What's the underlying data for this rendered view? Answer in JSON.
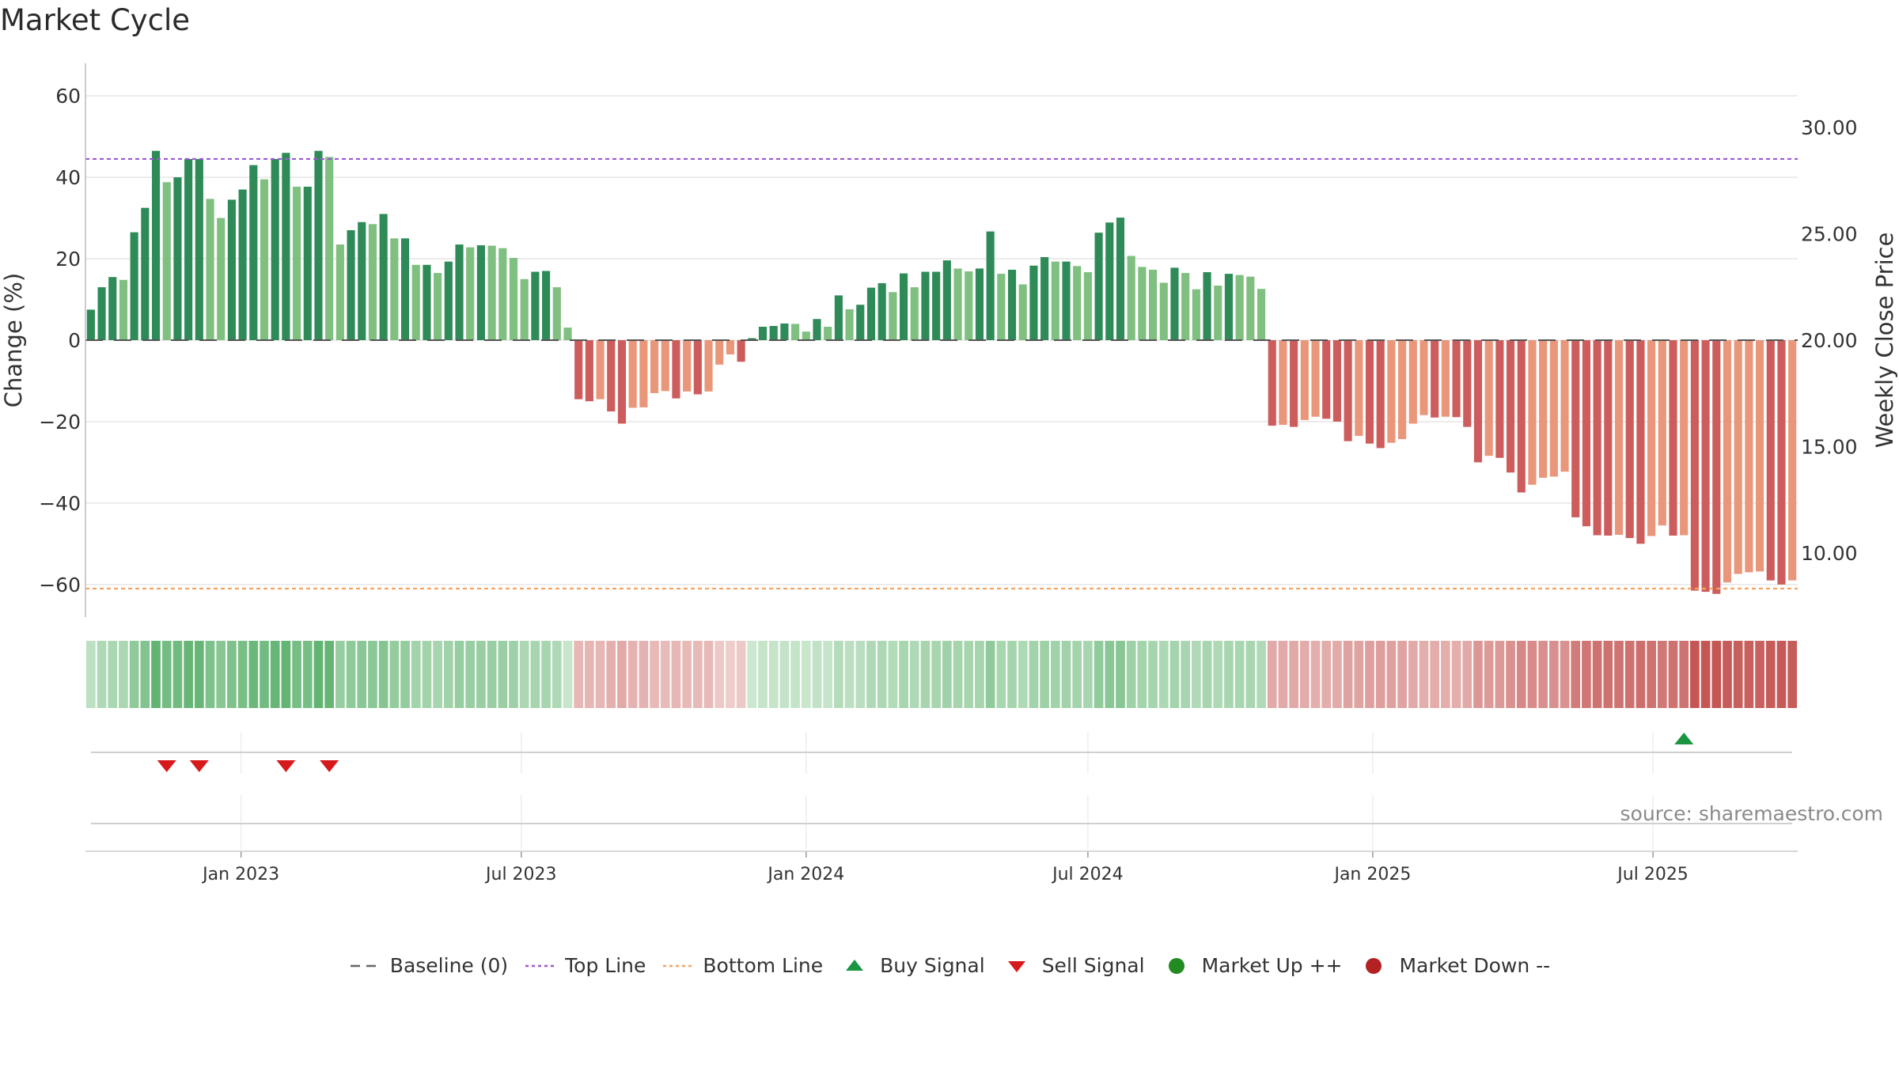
{
  "title": "Market Cycle",
  "source": "source: sharemaestro.com",
  "colors": {
    "up_strong": "#2e8b57",
    "up_weak": "#7fbf7f",
    "down_strong": "#cd5c5c",
    "down_weak": "#e9967a",
    "top_line": "#9b59d0",
    "bottom_line": "#f4a460",
    "buy": "#1a9641",
    "sell": "#d7191c",
    "market_up": "#228b22",
    "market_down": "#b22222",
    "baseline": "#555555"
  },
  "legend": {
    "items": [
      {
        "label": "Baseline (0)",
        "symbol": "dash-gray"
      },
      {
        "label": "Top Line",
        "symbol": "dot-purple"
      },
      {
        "label": "Bottom Line",
        "symbol": "dot-orange"
      },
      {
        "label": "Buy Signal",
        "symbol": "triangle-up-green"
      },
      {
        "label": "Sell Signal",
        "symbol": "triangle-down-red"
      },
      {
        "label": "Market Up ++",
        "symbol": "circle-green"
      },
      {
        "label": "Market Down --",
        "symbol": "circle-red"
      }
    ]
  },
  "chart_data": {
    "type": "bar",
    "x_start": "2022-09-26",
    "x_step_days": 7,
    "ylabel": "Change (%)",
    "ylabel_right": "Weekly Close Price",
    "ylim": [
      -68,
      68
    ],
    "yticks": [
      60,
      40,
      20,
      0,
      -20,
      -40,
      -60
    ],
    "ytick_labels": [
      "60",
      "40",
      "20",
      "0",
      "−20",
      "−40",
      "−60"
    ],
    "y2lim": [
      7,
      33
    ],
    "y2ticks": [
      30,
      25,
      20,
      15,
      10
    ],
    "y2tick_labels": [
      "30.00",
      "25.00",
      "20.00",
      "15.00",
      "10.00"
    ],
    "top_line": 44.5,
    "bottom_line": -61,
    "x_ticks": [
      {
        "label": "Jan 2023",
        "date": "2023-01-01"
      },
      {
        "label": "Jul 2023",
        "date": "2023-07-01"
      },
      {
        "label": "Jan 2024",
        "date": "2024-01-01"
      },
      {
        "label": "Jul 2024",
        "date": "2024-07-01"
      },
      {
        "label": "Jan 2025",
        "date": "2025-01-01"
      },
      {
        "label": "Jul 2025",
        "date": "2025-07-01"
      }
    ],
    "values": [
      7.5,
      13,
      15.5,
      14.8,
      26.5,
      32.5,
      46.5,
      38.8,
      40,
      44.5,
      44.5,
      34.7,
      30,
      34.5,
      37,
      43,
      39.5,
      44.5,
      46,
      37.7,
      37.7,
      46.5,
      45,
      23.5,
      27,
      29,
      28.5,
      31,
      25,
      25,
      18.5,
      18.5,
      16.5,
      19.3,
      23.5,
      22.8,
      23.3,
      23.2,
      22.6,
      20.2,
      15,
      16.8,
      17,
      13,
      3.1,
      -14.5,
      -15,
      -14.5,
      -17.5,
      -20.5,
      -16.6,
      -16.5,
      -13,
      -12.5,
      -14.3,
      -12.6,
      -13.3,
      -12.6,
      -6,
      -3.5,
      -5.3,
      0.5,
      3.3,
      3.5,
      4.1,
      4,
      2.1,
      5.2,
      3.3,
      11,
      7.6,
      8.7,
      12.9,
      14,
      11.8,
      16.4,
      13,
      16.8,
      16.8,
      19.6,
      17.6,
      16.9,
      17.6,
      26.7,
      16.3,
      17.3,
      13.7,
      18.3,
      20.4,
      19.3,
      19.3,
      18.2,
      16.7,
      26.4,
      28.9,
      30.1,
      20.7,
      18,
      17.3,
      14.1,
      17.8,
      16.5,
      12.5,
      16.7,
      13.4,
      16.3,
      16,
      15.6,
      12.6,
      -21,
      -20.8,
      -21.3,
      -19.6,
      -18.8,
      -19.3,
      -20,
      -24.8,
      -23.5,
      -25.4,
      -26.5,
      -25.2,
      -24.3,
      -20.5,
      -18.4,
      -19,
      -18.8,
      -18.9,
      -21.3,
      -30,
      -28.4,
      -28.9,
      -32.5,
      -37.4,
      -35.5,
      -33.8,
      -33.5,
      -32.3,
      -43.5,
      -45.7,
      -47.9,
      -48,
      -47.8,
      -48.6,
      -50,
      -48.1,
      -45.5,
      -48,
      -47.9,
      -61.5,
      -61.8,
      -62.3,
      -59.5,
      -57.4,
      -57,
      -56.8,
      -59,
      -60,
      -59
    ]
  },
  "signals": {
    "buy_dates": [
      "2025-07-21"
    ],
    "sell_dates": [
      "2022-11-14",
      "2022-12-05",
      "2023-01-30",
      "2023-02-27"
    ]
  }
}
